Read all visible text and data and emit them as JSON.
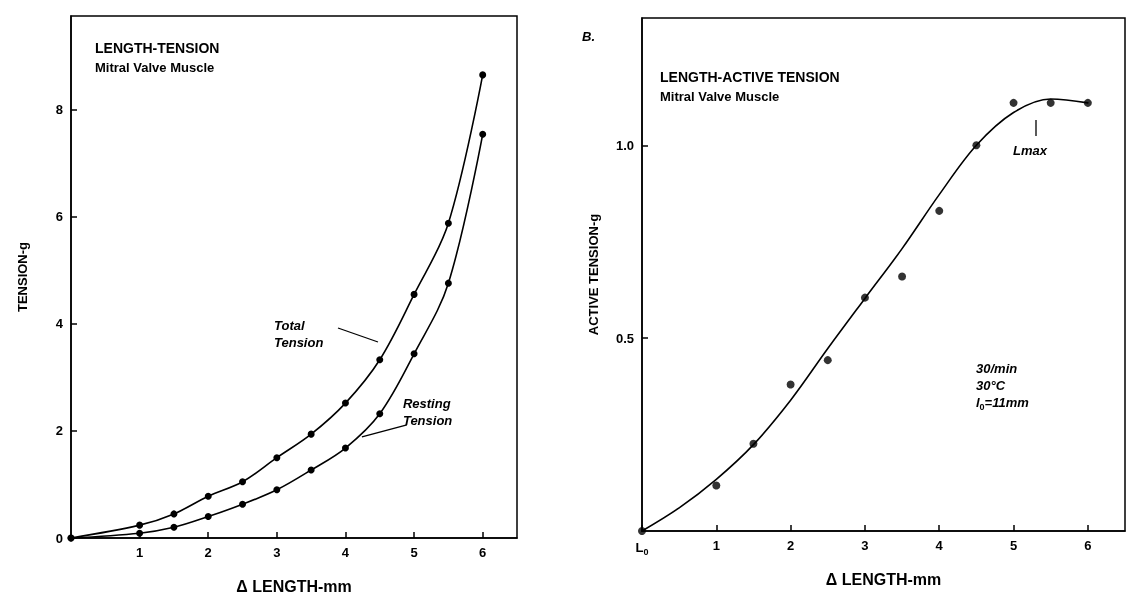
{
  "chart_data": [
    {
      "type": "line",
      "title": "LENGTH-TENSION",
      "subtitle": "Mitral Valve Muscle",
      "xlabel": "Δ LENGTH-mm",
      "ylabel": "TENSION-g",
      "xlim": [
        0,
        6.5
      ],
      "xticks": [
        1,
        2,
        3,
        4,
        5,
        6
      ],
      "ylim": [
        0,
        9.75
      ],
      "yticks": [
        0,
        2,
        4,
        6,
        8
      ],
      "marker": "circle",
      "grid": false,
      "line_style": "solid",
      "series": [
        {
          "color": "#000000",
          "x": [
            0,
            1,
            1.5,
            2,
            2.5,
            3,
            3.5,
            4,
            4.5,
            5,
            5.5,
            6
          ],
          "values": [
            0,
            0.24,
            0.45,
            0.78,
            1.05,
            1.5,
            1.94,
            2.52,
            3.33,
            4.55,
            5.88,
            8.65
          ]
        },
        {
          "color": "#000000",
          "x": [
            0,
            1,
            1.5,
            2,
            2.5,
            3,
            3.5,
            4,
            4.5,
            5,
            5.5,
            6
          ],
          "values": [
            0,
            0.09,
            0.2,
            0.4,
            0.63,
            0.9,
            1.27,
            1.68,
            2.32,
            3.44,
            4.76,
            7.54
          ]
        }
      ],
      "annotations": [
        "Total\nTension",
        {
          "text": "Resting\nTension",
          "x": 4.24,
          "y": 1.89
        }
      ]
    },
    {
      "type": "scatter",
      "title": "LENGTH-ACTIVE TENSION",
      "subtitle": "Mitral Valve Muscle",
      "xlabel": "Δ LENGTH-mm",
      "ylabel": "ACTIVE TENSION-g",
      "xlim": [
        0,
        6.5
      ],
      "xticks": [
        {
          "value": 0,
          "label": "L$_{0}$"
        },
        1,
        2,
        3,
        4,
        5,
        6
      ],
      "ylim": [
        0,
        1.33
      ],
      "yticks": [
        0.5,
        {
          "value": 1,
          "label": "1.0"
        }
      ],
      "marker": "circle",
      "grid": false,
      "line_style": "solid",
      "series": [
        {
          "color": "#000000",
          "x": [
            0,
            1,
            1.5,
            2,
            2.5,
            3,
            3.5,
            4,
            4.5,
            5,
            5.5,
            6
          ],
          "values": [
            0,
            0.118,
            0.226,
            0.38,
            0.443,
            0.605,
            0.66,
            0.83,
            1.0,
            1.11,
            1.11,
            1.11
          ]
        },
        {
          "type": "line",
          "marker": "none",
          "color": "#000000",
          "x": [
            0,
            0.5,
            1,
            1.5,
            2,
            2.5,
            3,
            3.5,
            4,
            4.5,
            5,
            5.5,
            6
          ],
          "values": [
            0,
            0.06,
            0.134,
            0.224,
            0.339,
            0.473,
            0.603,
            0.732,
            0.872,
            1.0,
            1.085,
            1.12,
            1.11
          ]
        }
      ],
      "annotations": [
        "B.",
        "30/min\n30°C\nl$_{0}$=11mm",
        "Lmax"
      ]
    }
  ]
}
